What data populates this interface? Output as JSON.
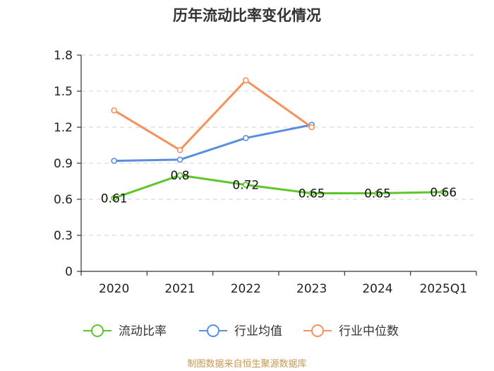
{
  "chart_data": {
    "type": "line",
    "title": "历年流动比率变化情况",
    "categories": [
      "2020",
      "2021",
      "2022",
      "2023",
      "2024",
      "2025Q1"
    ],
    "y_ticks": [
      "0",
      "0.3",
      "0.6",
      "0.9",
      "1.2",
      "1.5",
      "1.8"
    ],
    "ylim": [
      0,
      1.8
    ],
    "grid": true,
    "legend_position": "bottom",
    "series": [
      {
        "name": "流动比率",
        "color": "#5ec62a",
        "values": [
          0.61,
          0.8,
          0.72,
          0.65,
          0.65,
          0.66
        ],
        "show_labels": true
      },
      {
        "name": "行业均值",
        "color": "#5b8ee0",
        "values": [
          0.92,
          0.93,
          1.11,
          1.22,
          null,
          null
        ],
        "show_labels": false
      },
      {
        "name": "行业中位数",
        "color": "#f7905c",
        "values": [
          1.34,
          1.01,
          1.59,
          1.2,
          null,
          null
        ],
        "show_labels": false
      }
    ],
    "data_labels": [
      "0.61",
      "0.8",
      "0.72",
      "0.65",
      "0.65",
      "0.66"
    ]
  },
  "source_text": "制图数据来自恒生聚源数据库"
}
